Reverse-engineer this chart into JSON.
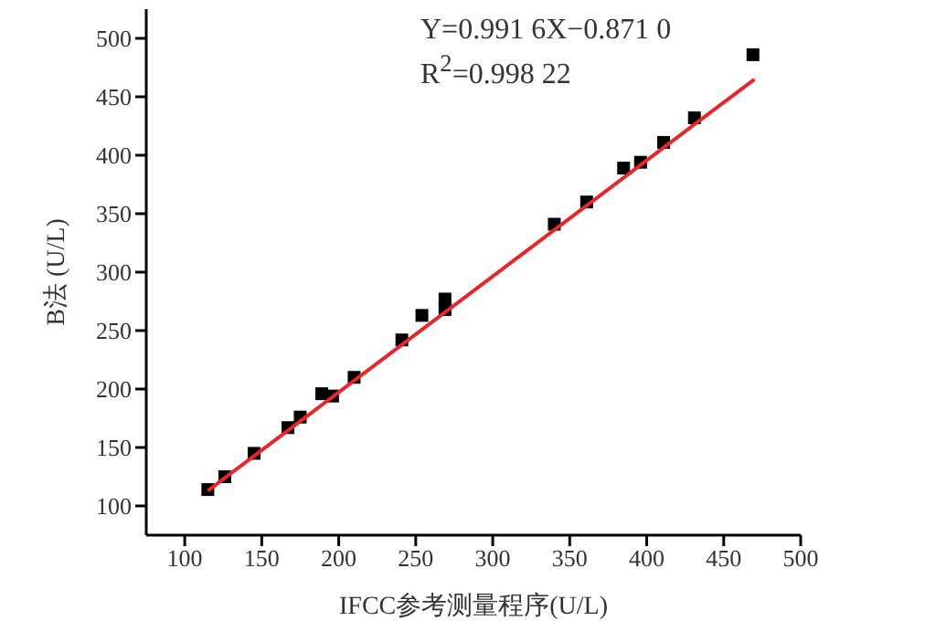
{
  "chart_data": {
    "type": "scatter",
    "xlabel": "IFCC参考测量程序(U/L)",
    "ylabel": "B法 (U/L)",
    "annotations": [
      "Y=0.991 6X−0.871 0",
      "R$^{2}$=0.998 22"
    ],
    "xlim": [
      75,
      500
    ],
    "xticks": [
      100,
      150,
      200,
      250,
      300,
      350,
      400,
      450,
      500
    ],
    "ylim": [
      75,
      525
    ],
    "yticks": [
      100,
      150,
      200,
      250,
      300,
      350,
      400,
      450,
      500
    ],
    "grid": false,
    "legend": false,
    "marker": "square",
    "series": [
      {
        "color": "#000000",
        "x": [
          115,
          126,
          145,
          167,
          175,
          189,
          196,
          210,
          241,
          254,
          269,
          269,
          340,
          361,
          385,
          396,
          411,
          431,
          469
        ],
        "values": [
          114,
          125,
          145,
          167,
          176,
          196,
          194,
          210,
          242,
          263,
          268,
          277,
          341,
          360,
          389,
          394,
          411,
          432,
          486
        ]
      },
      {
        "type": "line",
        "color": "#e8262a",
        "marker": "none",
        "x": [
          115,
          470
        ],
        "values": [
          113,
          465
        ]
      }
    ]
  }
}
